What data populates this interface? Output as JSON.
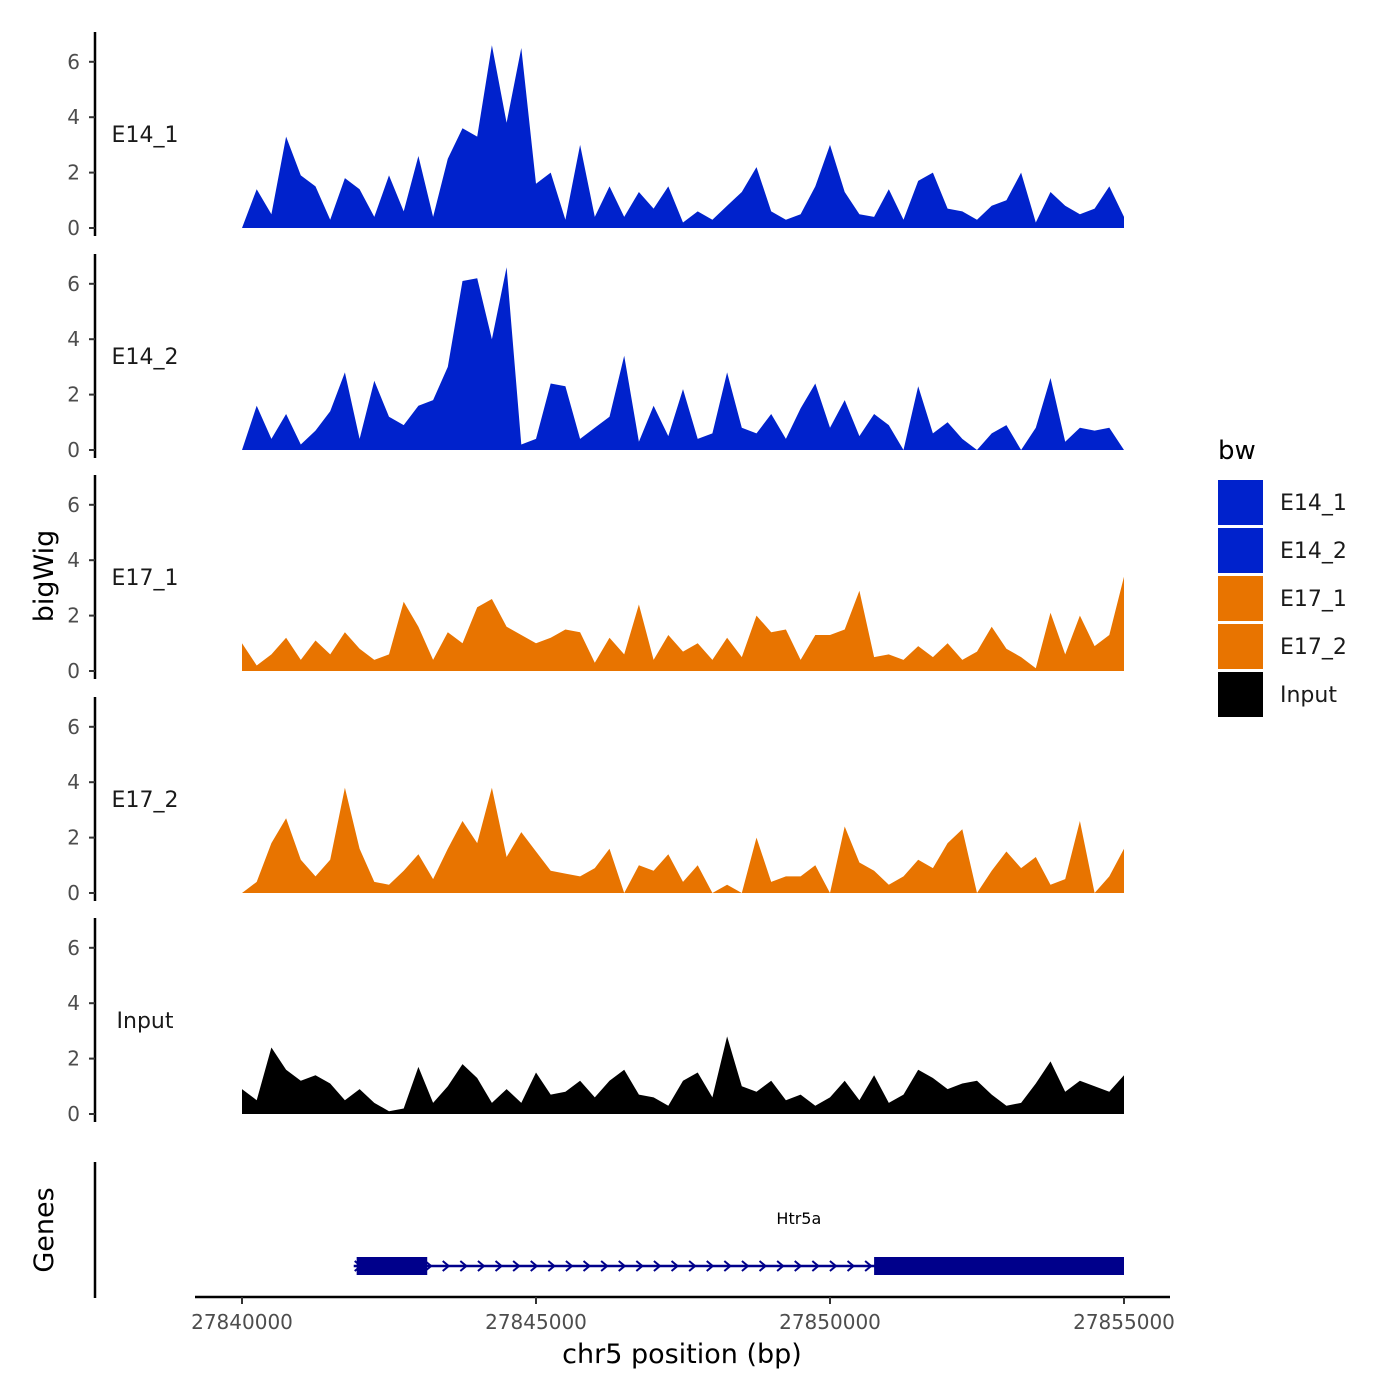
{
  "chart_data": {
    "type": "area",
    "title": "",
    "ylabel": "bigWig",
    "xlabel": "chr5 position (bp)",
    "gene_track_label": "Genes",
    "xlim": [
      27840000,
      27855000
    ],
    "xticks": [
      27840000,
      27845000,
      27850000,
      27855000
    ],
    "xtick_labels": [
      "27840000",
      "27845000",
      "27850000",
      "27855000"
    ],
    "ylim": [
      0,
      7
    ],
    "yticks": [
      0,
      2,
      4,
      6
    ],
    "ytick_labels": [
      "0",
      "2",
      "4",
      "6"
    ],
    "legend": {
      "title": "bw",
      "placement": "right",
      "items": [
        {
          "label": "E14_1",
          "color": "#0022cc"
        },
        {
          "label": "E14_2",
          "color": "#0022cc"
        },
        {
          "label": "E17_1",
          "color": "#e87400"
        },
        {
          "label": "E17_2",
          "color": "#e87400"
        },
        {
          "label": "Input",
          "color": "#000000"
        }
      ]
    },
    "series": [
      {
        "name": "E14_1",
        "color": "#0022cc",
        "x": [
          27840000,
          27840250,
          27840500,
          27840750,
          27841000,
          27841250,
          27841500,
          27841750,
          27842000,
          27842250,
          27842500,
          27842750,
          27843000,
          27843250,
          27843500,
          27843750,
          27844000,
          27844250,
          27844500,
          27844750,
          27845000,
          27845250,
          27845500,
          27845750,
          27846000,
          27846250,
          27846500,
          27846750,
          27847000,
          27847250,
          27847500,
          27847750,
          27848000,
          27848250,
          27848500,
          27848750,
          27849000,
          27849250,
          27849500,
          27849750,
          27850000,
          27850250,
          27850500,
          27850750,
          27851000,
          27851250,
          27851500,
          27851750,
          27852000,
          27852250,
          27852500,
          27852750,
          27853000,
          27853250,
          27853500,
          27853750,
          27854000,
          27854250,
          27854500,
          27854750,
          27855000
        ],
        "values": [
          0,
          1.4,
          0.5,
          3.3,
          1.9,
          1.5,
          0.3,
          1.8,
          1.4,
          0.4,
          1.9,
          0.6,
          2.6,
          0.4,
          2.5,
          3.6,
          3.3,
          6.6,
          3.8,
          6.5,
          1.6,
          2.0,
          0.3,
          3.0,
          0.4,
          1.5,
          0.4,
          1.3,
          0.7,
          1.5,
          0.2,
          0.6,
          0.3,
          0.8,
          1.3,
          2.2,
          0.6,
          0.3,
          0.5,
          1.5,
          3.0,
          1.3,
          0.5,
          0.4,
          1.4,
          0.3,
          1.7,
          2.0,
          0.7,
          0.6,
          0.3,
          0.8,
          1.0,
          2.0,
          0.2,
          1.3,
          0.8,
          0.5,
          0.7,
          1.5,
          0.4
        ]
      },
      {
        "name": "E14_2",
        "color": "#0022cc",
        "x": [
          27840000,
          27840250,
          27840500,
          27840750,
          27841000,
          27841250,
          27841500,
          27841750,
          27842000,
          27842250,
          27842500,
          27842750,
          27843000,
          27843250,
          27843500,
          27843750,
          27844000,
          27844250,
          27844500,
          27844750,
          27845000,
          27845250,
          27845500,
          27845750,
          27846000,
          27846250,
          27846500,
          27846750,
          27847000,
          27847250,
          27847500,
          27847750,
          27848000,
          27848250,
          27848500,
          27848750,
          27849000,
          27849250,
          27849500,
          27849750,
          27850000,
          27850250,
          27850500,
          27850750,
          27851000,
          27851250,
          27851500,
          27851750,
          27852000,
          27852250,
          27852500,
          27852750,
          27853000,
          27853250,
          27853500,
          27853750,
          27854000,
          27854250,
          27854500,
          27854750,
          27855000
        ],
        "values": [
          0,
          1.6,
          0.4,
          1.3,
          0.2,
          0.7,
          1.4,
          2.8,
          0.4,
          2.5,
          1.2,
          0.9,
          1.6,
          1.8,
          3.0,
          6.1,
          6.2,
          4.0,
          6.6,
          0.2,
          0.4,
          2.4,
          2.3,
          0.4,
          0.8,
          1.2,
          3.4,
          0.3,
          1.6,
          0.5,
          2.2,
          0.4,
          0.6,
          2.8,
          0.8,
          0.6,
          1.3,
          0.4,
          1.5,
          2.4,
          0.8,
          1.8,
          0.5,
          1.3,
          0.9,
          0,
          2.3,
          0.6,
          1.0,
          0.4,
          0,
          0.6,
          0.9,
          0,
          0.8,
          2.6,
          0.3,
          0.8,
          0.7,
          0.8,
          0
        ]
      },
      {
        "name": "E17_1",
        "color": "#e87400",
        "x": [
          27840000,
          27840250,
          27840500,
          27840750,
          27841000,
          27841250,
          27841500,
          27841750,
          27842000,
          27842250,
          27842500,
          27842750,
          27843000,
          27843250,
          27843500,
          27843750,
          27844000,
          27844250,
          27844500,
          27844750,
          27845000,
          27845250,
          27845500,
          27845750,
          27846000,
          27846250,
          27846500,
          27846750,
          27847000,
          27847250,
          27847500,
          27847750,
          27848000,
          27848250,
          27848500,
          27848750,
          27849000,
          27849250,
          27849500,
          27849750,
          27850000,
          27850250,
          27850500,
          27850750,
          27851000,
          27851250,
          27851500,
          27851750,
          27852000,
          27852250,
          27852500,
          27852750,
          27853000,
          27853250,
          27853500,
          27853750,
          27854000,
          27854250,
          27854500,
          27854750,
          27855000
        ],
        "values": [
          1.0,
          0.2,
          0.6,
          1.2,
          0.4,
          1.1,
          0.6,
          1.4,
          0.8,
          0.4,
          0.6,
          2.5,
          1.6,
          0.4,
          1.4,
          1.0,
          2.3,
          2.6,
          1.6,
          1.3,
          1.0,
          1.2,
          1.5,
          1.4,
          0.3,
          1.2,
          0.6,
          2.4,
          0.4,
          1.3,
          0.7,
          1.0,
          0.4,
          1.2,
          0.5,
          2.0,
          1.4,
          1.5,
          0.4,
          1.3,
          1.3,
          1.5,
          2.9,
          0.5,
          0.6,
          0.4,
          0.9,
          0.5,
          1.0,
          0.4,
          0.7,
          1.6,
          0.8,
          0.5,
          0.1,
          2.1,
          0.6,
          2.0,
          0.9,
          1.3,
          3.4
        ]
      },
      {
        "name": "E17_2",
        "color": "#e87400",
        "x": [
          27840000,
          27840250,
          27840500,
          27840750,
          27841000,
          27841250,
          27841500,
          27841750,
          27842000,
          27842250,
          27842500,
          27842750,
          27843000,
          27843250,
          27843500,
          27843750,
          27844000,
          27844250,
          27844500,
          27844750,
          27845000,
          27845250,
          27845500,
          27845750,
          27846000,
          27846250,
          27846500,
          27846750,
          27847000,
          27847250,
          27847500,
          27847750,
          27848000,
          27848250,
          27848500,
          27848750,
          27849000,
          27849250,
          27849500,
          27849750,
          27850000,
          27850250,
          27850500,
          27850750,
          27851000,
          27851250,
          27851500,
          27851750,
          27852000,
          27852250,
          27852500,
          27852750,
          27853000,
          27853250,
          27853500,
          27853750,
          27854000,
          27854250,
          27854500,
          27854750,
          27855000
        ],
        "values": [
          0,
          0.4,
          1.8,
          2.7,
          1.2,
          0.6,
          1.2,
          3.8,
          1.6,
          0.4,
          0.3,
          0.8,
          1.4,
          0.5,
          1.6,
          2.6,
          1.8,
          3.8,
          1.3,
          2.2,
          1.5,
          0.8,
          0.7,
          0.6,
          0.9,
          1.6,
          0,
          1.0,
          0.8,
          1.4,
          0.4,
          1.0,
          0,
          0.3,
          0,
          2.0,
          0.4,
          0.6,
          0.6,
          1.0,
          0,
          2.4,
          1.1,
          0.8,
          0.3,
          0.6,
          1.2,
          0.9,
          1.8,
          2.3,
          0,
          0.8,
          1.5,
          0.9,
          1.3,
          0.3,
          0.5,
          2.6,
          0,
          0.6,
          1.6
        ]
      },
      {
        "name": "Input",
        "color": "#000000",
        "x": [
          27840000,
          27840250,
          27840500,
          27840750,
          27841000,
          27841250,
          27841500,
          27841750,
          27842000,
          27842250,
          27842500,
          27842750,
          27843000,
          27843250,
          27843500,
          27843750,
          27844000,
          27844250,
          27844500,
          27844750,
          27845000,
          27845250,
          27845500,
          27845750,
          27846000,
          27846250,
          27846500,
          27846750,
          27847000,
          27847250,
          27847500,
          27847750,
          27848000,
          27848250,
          27848500,
          27848750,
          27849000,
          27849250,
          27849500,
          27849750,
          27850000,
          27850250,
          27850500,
          27850750,
          27851000,
          27851250,
          27851500,
          27851750,
          27852000,
          27852250,
          27852500,
          27852750,
          27853000,
          27853250,
          27853500,
          27853750,
          27854000,
          27854250,
          27854500,
          27854750,
          27855000
        ],
        "values": [
          0.9,
          0.5,
          2.4,
          1.6,
          1.2,
          1.4,
          1.1,
          0.5,
          0.9,
          0.4,
          0.1,
          0.2,
          1.7,
          0.4,
          1.0,
          1.8,
          1.3,
          0.4,
          0.9,
          0.4,
          1.5,
          0.7,
          0.8,
          1.2,
          0.6,
          1.2,
          1.6,
          0.7,
          0.6,
          0.3,
          1.2,
          1.5,
          0.6,
          2.8,
          1.0,
          0.8,
          1.2,
          0.5,
          0.7,
          0.3,
          0.6,
          1.2,
          0.5,
          1.4,
          0.4,
          0.7,
          1.6,
          1.3,
          0.9,
          1.1,
          1.2,
          0.7,
          0.3,
          0.4,
          1.1,
          1.9,
          0.8,
          1.2,
          1.0,
          0.8,
          1.4
        ]
      }
    ],
    "gene": {
      "name": "Htr5a",
      "color": "#00008b",
      "start": 27841900,
      "end": 27855000,
      "strand": "+",
      "exons": [
        [
          27841950,
          27843150
        ],
        [
          27850750,
          27855000
        ]
      ]
    }
  }
}
